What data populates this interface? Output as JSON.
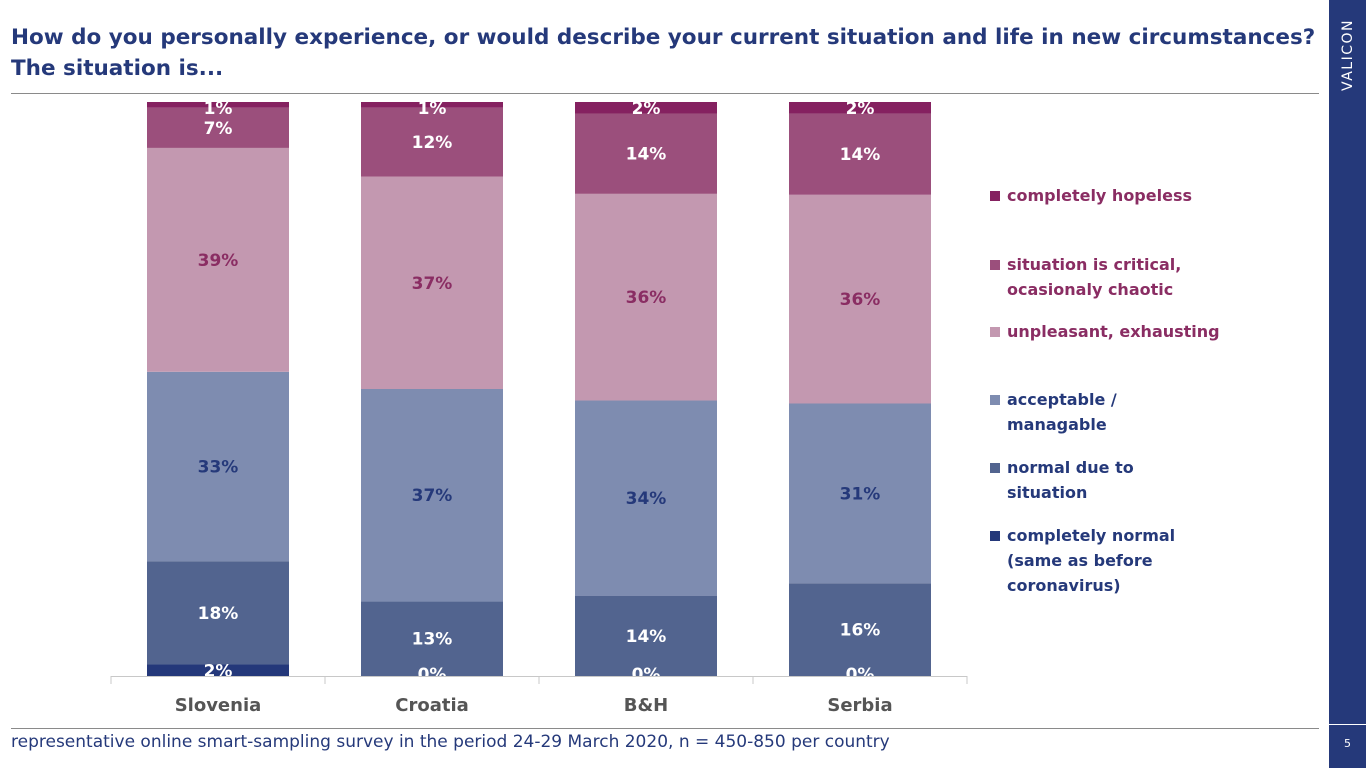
{
  "title": "How do you personally experience, or would describe your current situation and life in new circumstances? The situation is...",
  "brand": "VALICON",
  "page_number": "5",
  "footer": "representative online smart-sampling survey in the period 24-29 March 2020, n = 450-850 per country",
  "chart_data": {
    "type": "bar",
    "stacked": true,
    "percent_stacked": true,
    "categories": [
      "Slovenia",
      "Croatia",
      "B&H",
      "Serbia"
    ],
    "ylim": [
      0,
      100
    ],
    "grid": false,
    "legend_position": "right",
    "series": [
      {
        "name": "completely normal\n(same as before\ncoronavirus)",
        "color": "#24387a",
        "text_color": "#ffffff",
        "values": [
          2,
          0,
          0,
          0
        ],
        "labels": [
          "2%",
          "0%",
          "0%",
          "0%"
        ]
      },
      {
        "name": "normal due to\nsituation",
        "color": "#52648f",
        "text_color": "#ffffff",
        "values": [
          18,
          13,
          14,
          16
        ],
        "labels": [
          "18%",
          "13%",
          "14%",
          "16%"
        ]
      },
      {
        "name": "acceptable /\nmanagable",
        "color": "#7e8cb0",
        "text_color": "#25397a",
        "values": [
          33,
          37,
          34,
          31
        ],
        "labels": [
          "33%",
          "37%",
          "34%",
          "31%"
        ]
      },
      {
        "name": "unpleasant, exhausting",
        "color": "#c398b0",
        "text_color": "#8a2d63",
        "values": [
          39,
          37,
          36,
          36
        ],
        "labels": [
          "39%",
          "37%",
          "36%",
          "36%"
        ]
      },
      {
        "name": "situation is critical,\nocasionaly chaotic",
        "color": "#9b4f7c",
        "text_color": "#ffffff",
        "values": [
          7,
          12,
          14,
          14
        ],
        "labels": [
          "7%",
          "12%",
          "14%",
          "14%"
        ]
      },
      {
        "name": "completely hopeless",
        "color": "#852160",
        "text_color": "#ffffff",
        "values": [
          1,
          1,
          2,
          2
        ],
        "labels": [
          "1%",
          "1%",
          "2%",
          "2%"
        ]
      }
    ],
    "legend_order": [
      5,
      4,
      3,
      2,
      1,
      0
    ]
  }
}
